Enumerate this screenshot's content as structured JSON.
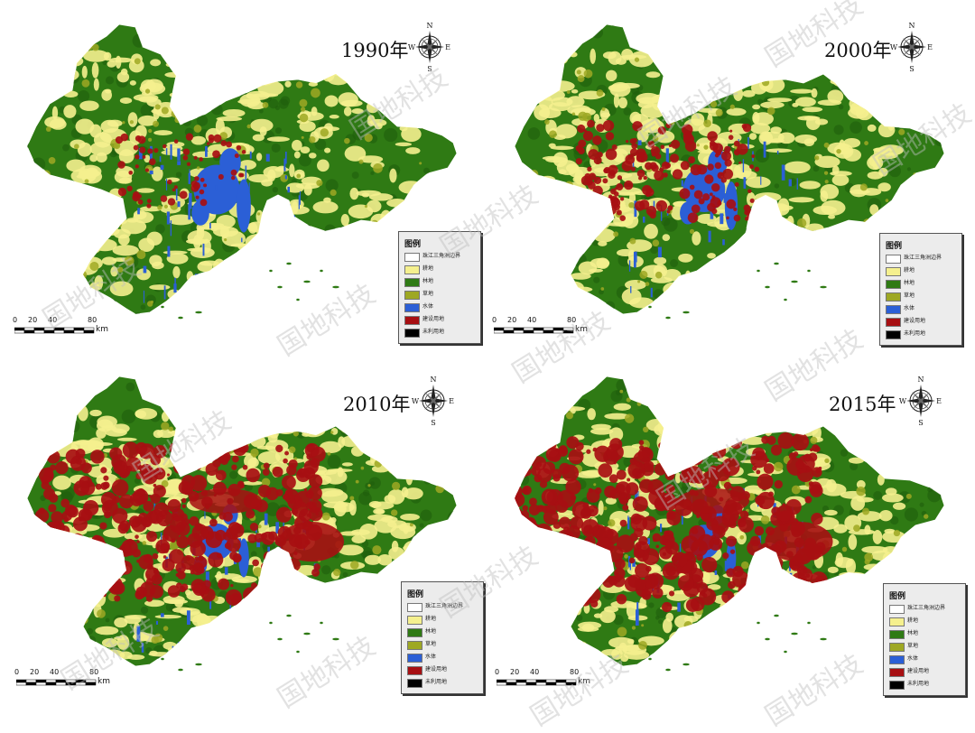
{
  "panels": [
    {
      "year_label": "1990年"
    },
    {
      "year_label": "2000年"
    },
    {
      "year_label": "2010年"
    },
    {
      "year_label": "2015年"
    }
  ],
  "compass": {
    "n": "N",
    "s": "S",
    "e": "E",
    "w": "W"
  },
  "legend": {
    "title": "图例",
    "items": [
      {
        "label": "珠江三角洲边界",
        "color": "#ffffff"
      },
      {
        "label": "耕地",
        "color": "#f5f08e"
      },
      {
        "label": "林地",
        "color": "#2f7a14"
      },
      {
        "label": "草地",
        "color": "#9ea823"
      },
      {
        "label": "水体",
        "color": "#2b5fd6"
      },
      {
        "label": "建设用地",
        "color": "#a70f12"
      },
      {
        "label": "未利用地",
        "color": "#000000"
      }
    ]
  },
  "scale": {
    "ticks": [
      "0",
      "20",
      "40",
      "80"
    ],
    "unit": "km"
  },
  "watermark": "国地科技",
  "colors": {
    "forest": "#2f7a14",
    "forest_dark": "#1f5e0c",
    "cropland": "#f5f08e",
    "grass": "#9ea823",
    "water": "#2b5fd6",
    "builtup": "#a70f12"
  }
}
